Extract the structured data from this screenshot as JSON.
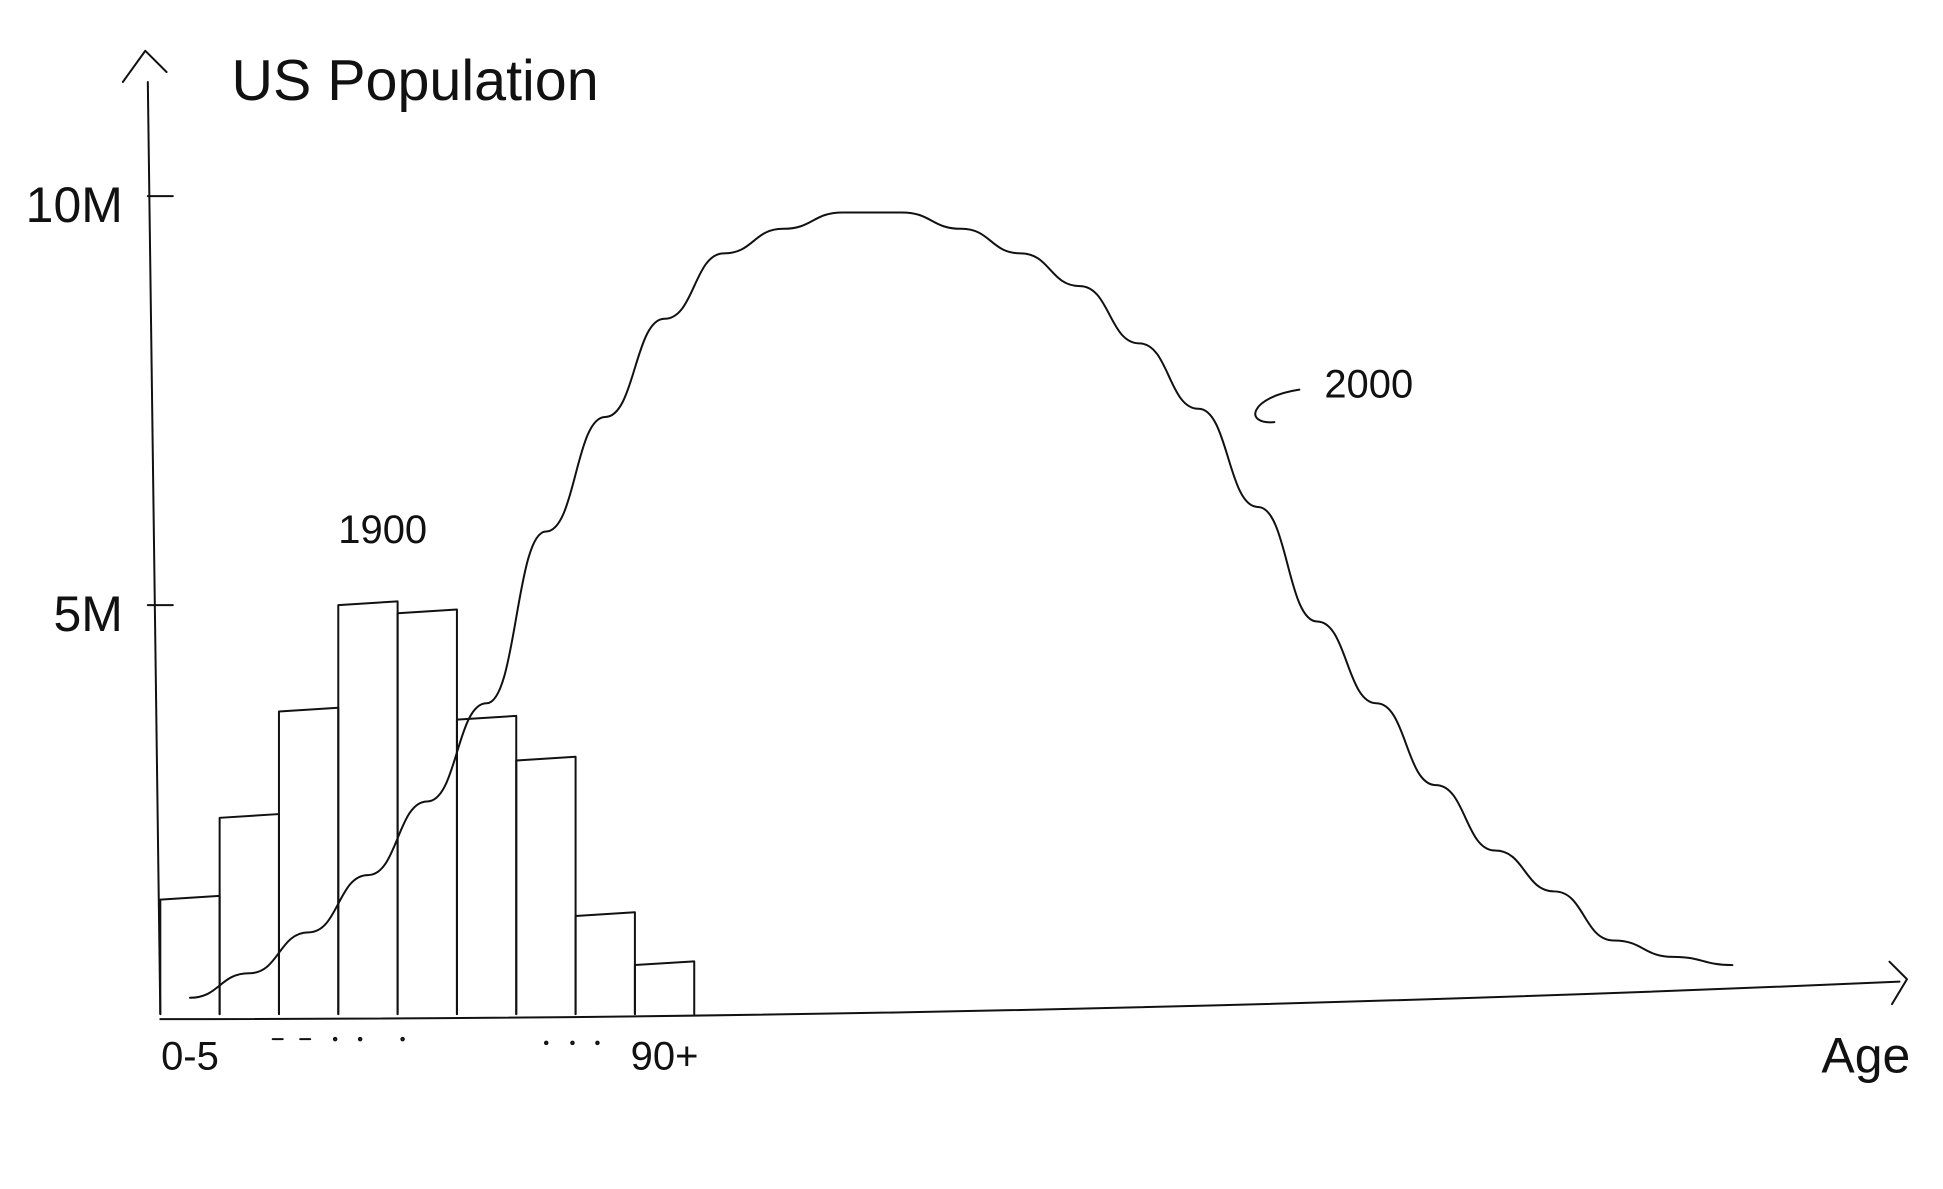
{
  "chart_data": {
    "type": "bar",
    "title": "US Population",
    "x_label": "Age",
    "categories": [
      "0-5",
      null,
      null,
      null,
      null,
      null,
      null,
      null,
      "90+",
      null,
      null,
      null,
      null,
      null,
      null,
      null,
      null,
      null,
      null,
      null,
      null,
      null,
      null,
      null,
      null,
      null,
      null
    ],
    "series": [
      {
        "name": "1900",
        "type": "bar",
        "color": "#000000",
        "values": [
          1400000,
          2400000,
          3700000,
          5000000,
          4900000,
          3600000,
          3100000,
          1200000,
          600000,
          null,
          null,
          null,
          null,
          null,
          null,
          null,
          null,
          null,
          null,
          null,
          null,
          null,
          null,
          null,
          null,
          null,
          null
        ]
      },
      {
        "name": "2000",
        "type": "line",
        "color": "#000000",
        "values": [
          200000,
          500000,
          1000000,
          1700000,
          2600000,
          3800000,
          5900000,
          7300000,
          8500000,
          9300000,
          9600000,
          9800000,
          9800000,
          9600000,
          9300000,
          8900000,
          8200000,
          7400000,
          6200000,
          4800000,
          3800000,
          2800000,
          2000000,
          1500000,
          900000,
          700000,
          600000
        ]
      }
    ],
    "ylim": [
      0,
      11700000
    ],
    "yticks": [
      {
        "value": 5000000,
        "label": "5M"
      },
      {
        "value": 10000000,
        "label": "10M"
      }
    ],
    "grid": false
  }
}
